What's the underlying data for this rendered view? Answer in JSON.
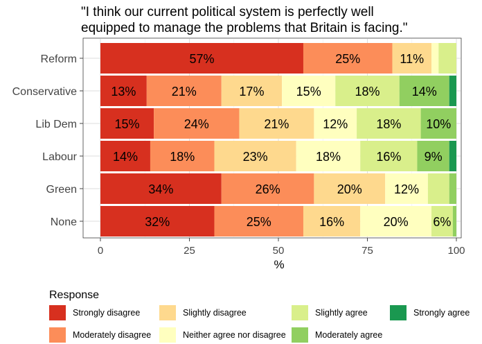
{
  "chart_data": {
    "type": "bar",
    "orientation": "horizontal",
    "stacked": true,
    "title_lines": [
      "\"I think our current political system is perfectly well",
      "equipped to manage the problems that Britain is facing.\""
    ],
    "xlabel": "%",
    "ylabel": "",
    "xlim": [
      0,
      100
    ],
    "xticks": [
      "0",
      "25",
      "50",
      "75",
      "100"
    ],
    "xtick_values": [
      0,
      25,
      50,
      75,
      100
    ],
    "grid": true,
    "legend_title": "Response",
    "legend_position": "bottom",
    "categories": [
      "Reform",
      "Conservative",
      "Lib Dem",
      "Labour",
      "Green",
      "None"
    ],
    "series": [
      {
        "name": "Strongly disagree",
        "color": "#d7301f",
        "values": [
          57,
          13,
          15,
          14,
          34,
          32
        ],
        "labels": [
          "57%",
          "13%",
          "15%",
          "14%",
          "34%",
          "32%"
        ]
      },
      {
        "name": "Moderately disagree",
        "color": "#fc8d59",
        "values": [
          25,
          21,
          24,
          18,
          26,
          25
        ],
        "labels": [
          "25%",
          "21%",
          "24%",
          "18%",
          "26%",
          "25%"
        ]
      },
      {
        "name": "Slightly disagree",
        "color": "#fed98e",
        "values": [
          11,
          17,
          21,
          23,
          20,
          16
        ],
        "labels": [
          "11%",
          "17%",
          "21%",
          "23%",
          "20%",
          "16%"
        ]
      },
      {
        "name": "Neither agree nor disagree",
        "color": "#ffffbf",
        "values": [
          2,
          15,
          12,
          18,
          12,
          20
        ],
        "labels": [
          "",
          "15%",
          "12%",
          "18%",
          "12%",
          "20%"
        ]
      },
      {
        "name": "Slightly agree",
        "color": "#d9ef8b",
        "values": [
          5,
          18,
          18,
          16,
          6,
          6
        ],
        "labels": [
          "",
          "18%",
          "18%",
          "16%",
          "",
          "6%"
        ]
      },
      {
        "name": "Moderately agree",
        "color": "#91cf60",
        "values": [
          0,
          14,
          10,
          9,
          2,
          1
        ],
        "labels": [
          "",
          "14%",
          "10%",
          "9%",
          "",
          ""
        ]
      },
      {
        "name": "Strongly agree",
        "color": "#1a9850",
        "values": [
          0,
          2,
          0,
          2,
          0,
          0
        ],
        "labels": [
          "",
          "",
          "",
          "",
          "",
          ""
        ]
      }
    ],
    "legend_rows": [
      [
        "Strongly disagree",
        "Slightly disagree",
        "Slightly agree",
        "Strongly agree"
      ],
      [
        "Moderately disagree",
        "Neither agree nor disagree",
        "Moderately agree"
      ]
    ]
  }
}
